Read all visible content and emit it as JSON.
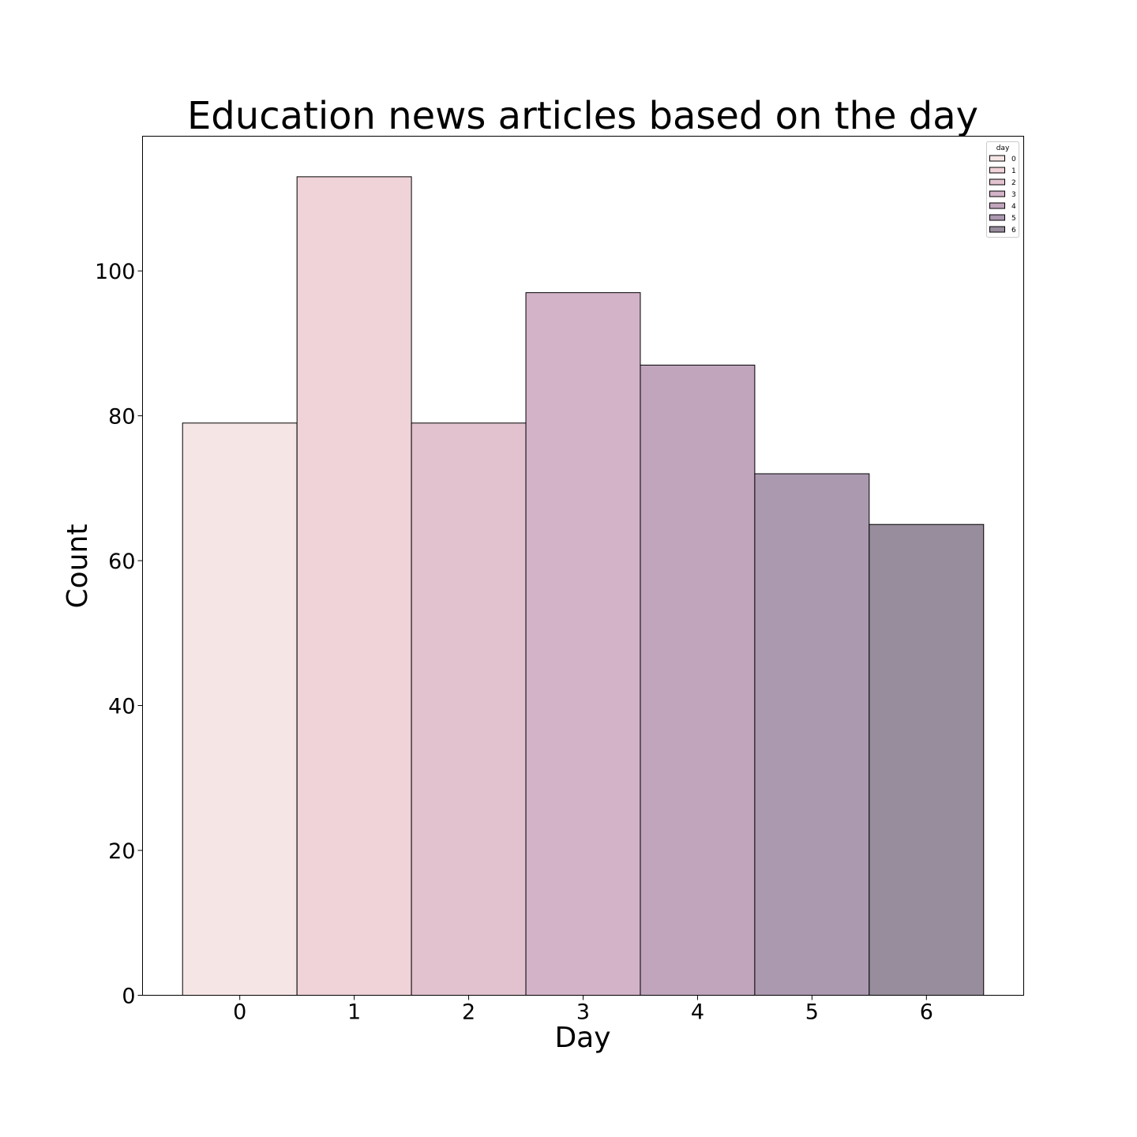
{
  "chart_data": {
    "type": "bar",
    "title": "Education news articles based on the day",
    "xlabel": "Day",
    "ylabel": "Count",
    "categories": [
      "0",
      "1",
      "2",
      "3",
      "4",
      "5",
      "6"
    ],
    "values": [
      79,
      113,
      79,
      97,
      87,
      72,
      65
    ],
    "colors": [
      "#f5e6e5",
      "#efd3d8",
      "#e2c2cf",
      "#d3b3c8",
      "#c0a5bd",
      "#ab99b0",
      "#978d9c"
    ],
    "edge_color": "#000000",
    "xlim": [
      -0.85,
      6.85
    ],
    "ylim": [
      0,
      118.6
    ],
    "yticks": [
      0,
      20,
      40,
      60,
      80,
      100
    ],
    "ytick_labels": [
      "0",
      "20",
      "40",
      "60",
      "80",
      "100"
    ],
    "grid": false,
    "legend": {
      "title": "day",
      "entries": [
        "0",
        "1",
        "2",
        "3",
        "4",
        "5",
        "6"
      ],
      "placement": "top-right"
    }
  }
}
